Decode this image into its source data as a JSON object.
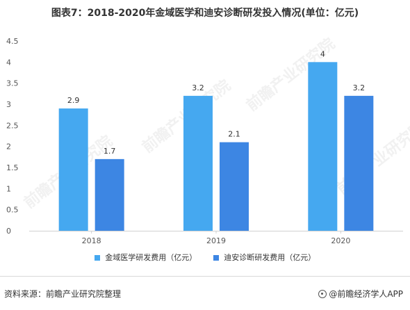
{
  "header": {
    "title": "图表7：2018-2020年金域医学和迪安诊断研发投入情况(单位：亿元)"
  },
  "chart_data": {
    "type": "bar",
    "categories": [
      "2018",
      "2019",
      "2020"
    ],
    "series": [
      {
        "name": "金域医学研发费用（亿元）",
        "values": [
          2.9,
          3.2,
          4
        ],
        "labels": [
          "2.9",
          "3.2",
          "4"
        ],
        "color": "#45a8f0"
      },
      {
        "name": "迪安诊断研发费用（亿元）",
        "values": [
          1.7,
          2.1,
          3.2
        ],
        "labels": [
          "1.7",
          "2.1",
          "3.2"
        ],
        "color": "#3d86e3"
      }
    ],
    "ylim": [
      0,
      4.5
    ],
    "yticks": [
      "0",
      "0.5",
      "1",
      "1.5",
      "2",
      "2.5",
      "3",
      "3.5",
      "4",
      "4.5"
    ],
    "legend_position": "bottom",
    "grid": false
  },
  "footer": {
    "source": "资料来源：前瞻产业研究院整理",
    "brand": "@前瞻经济学人APP"
  },
  "watermark": {
    "text": "前瞻产业研究院"
  }
}
